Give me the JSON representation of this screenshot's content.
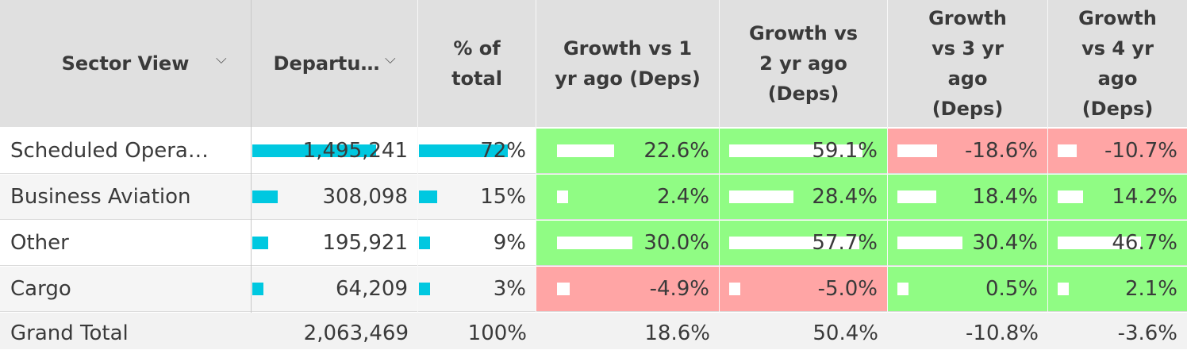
{
  "colors": {
    "header_bg": "#e0e0e0",
    "positive": "#90fc84",
    "negative": "#ffa5a5",
    "bar_cyan": "#00c8e0",
    "bar_white": "#ffffff",
    "alt_row": "#f5f5f5",
    "total_row": "#f2f2f2"
  },
  "headers": {
    "sector": "Sector View",
    "departures": "Departu…",
    "pct_total": "% of total",
    "g1": "Growth vs 1 yr ago (Deps)",
    "g2": "Growth vs 2 yr ago (Deps)",
    "g3": "Growth vs 3 yr ago (Deps)",
    "g4": "Growth vs 4 yr ago (Deps)",
    "sort_icon": "chevron-down-icon"
  },
  "rows": [
    {
      "label": "Scheduled Opera…",
      "departures": "1,495,241",
      "pct": "72%",
      "g1": "22.6%",
      "g2": "59.1%",
      "g3": "-18.6%",
      "g4": "-10.7%"
    },
    {
      "label": "Business Aviation",
      "departures": "308,098",
      "pct": "15%",
      "g1": "2.4%",
      "g2": "28.4%",
      "g3": "18.4%",
      "g4": "14.2%"
    },
    {
      "label": "Other",
      "departures": "195,921",
      "pct": "9%",
      "g1": "30.0%",
      "g2": "57.7%",
      "g3": "30.4%",
      "g4": "46.7%"
    },
    {
      "label": "Cargo",
      "departures": "64,209",
      "pct": "3%",
      "g1": "-4.9%",
      "g2": "-5.0%",
      "g3": "0.5%",
      "g4": "2.1%"
    }
  ],
  "total": {
    "label": "Grand Total",
    "departures": "2,063,469",
    "pct": "100%",
    "g1": "18.6%",
    "g2": "50.4%",
    "g3": "-10.8%",
    "g4": "-3.6%"
  }
}
